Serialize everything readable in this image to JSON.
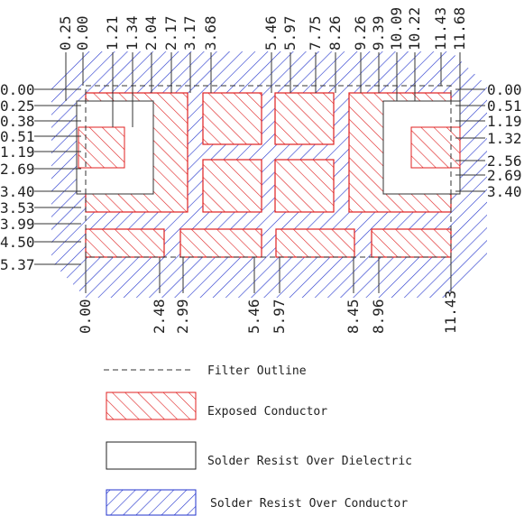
{
  "top_labels": [
    "0.25",
    "0.00",
    "1.21",
    "1.34",
    "2.04",
    "2.17",
    "3.17",
    "3.68",
    "5.46",
    "5.97",
    "7.75",
    "8.26",
    "9.26",
    "9.39",
    "10.09",
    "10.22",
    "11.43",
    "11.68"
  ],
  "left_labels": [
    "0.00",
    "0.25",
    "0.38",
    "0.51",
    "1.19",
    "2.69",
    "3.40",
    "3.53",
    "3.99",
    "4.50",
    "5.37"
  ],
  "right_labels": [
    "0.00",
    "0.51",
    "1.19",
    "1.32",
    "2.56",
    "2.69",
    "3.40"
  ],
  "bottom_labels": [
    "0.00",
    "2.48",
    "2.99",
    "5.46",
    "5.97",
    "8.45",
    "8.96",
    "11.43"
  ],
  "legend": [
    "Filter Outline",
    "Exposed Conductor",
    "Solder Resist Over Dielectric",
    "Solder Resist Over Conductor"
  ]
}
